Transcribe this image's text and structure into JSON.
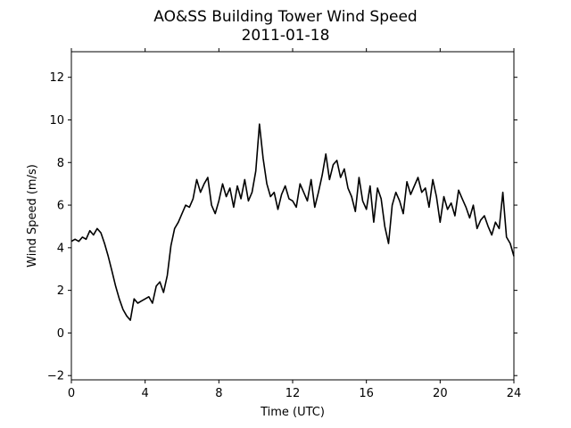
{
  "chart_data": {
    "type": "line",
    "title": "AO&SS Building Tower Wind Speed",
    "subtitle": "2011-01-18",
    "xlabel": "Time (UTC)",
    "ylabel": "Wind Speed (m/s)",
    "xlim": [
      0,
      24
    ],
    "ylim": [
      -2.2,
      13.2
    ],
    "xticks": [
      0,
      4,
      8,
      12,
      16,
      20,
      24
    ],
    "yticks": [
      -2,
      0,
      2,
      4,
      6,
      8,
      10,
      12
    ],
    "grid": false,
    "legend": "none",
    "line_color": "#000000",
    "series": [
      {
        "x": [
          0,
          0.2,
          0.4,
          0.6,
          0.8,
          1.0,
          1.2,
          1.4,
          1.6,
          1.8,
          2.0,
          2.2,
          2.4,
          2.6,
          2.8,
          3.0,
          3.2,
          3.4,
          3.6,
          3.8,
          4.0,
          4.2,
          4.4,
          4.6,
          4.8,
          5.0,
          5.2,
          5.4,
          5.6,
          5.8,
          6.0,
          6.2,
          6.4,
          6.6,
          6.8,
          7.0,
          7.2,
          7.4,
          7.6,
          7.8,
          8.0,
          8.2,
          8.4,
          8.6,
          8.8,
          9.0,
          9.2,
          9.4,
          9.6,
          9.8,
          10.0,
          10.2,
          10.4,
          10.6,
          10.8,
          11.0,
          11.2,
          11.4,
          11.6,
          11.8,
          12.0,
          12.2,
          12.4,
          12.6,
          12.8,
          13.0,
          13.2,
          13.4,
          13.6,
          13.8,
          14.0,
          14.2,
          14.4,
          14.6,
          14.8,
          15.0,
          15.2,
          15.4,
          15.6,
          15.8,
          16.0,
          16.2,
          16.4,
          16.6,
          16.8,
          17.0,
          17.2,
          17.4,
          17.6,
          17.8,
          18.0,
          18.2,
          18.4,
          18.6,
          18.8,
          19.0,
          19.2,
          19.4,
          19.6,
          19.8,
          20.0,
          20.2,
          20.4,
          20.6,
          20.8,
          21.0,
          21.2,
          21.4,
          21.6,
          21.8,
          22.0,
          22.2,
          22.4,
          22.6,
          22.8,
          23.0,
          23.2,
          23.4,
          23.6,
          23.8,
          24.0
        ],
        "values": [
          4.3,
          4.4,
          4.3,
          4.5,
          4.4,
          4.8,
          4.6,
          4.9,
          4.7,
          4.2,
          3.6,
          2.9,
          2.2,
          1.6,
          1.1,
          0.8,
          0.6,
          1.6,
          1.4,
          1.5,
          1.6,
          1.7,
          1.4,
          2.2,
          2.4,
          1.9,
          2.7,
          4.1,
          4.9,
          5.2,
          5.6,
          6.0,
          5.9,
          6.3,
          7.2,
          6.6,
          7.0,
          7.3,
          6.0,
          5.6,
          6.2,
          7.0,
          6.4,
          6.8,
          5.9,
          6.9,
          6.3,
          7.2,
          6.2,
          6.6,
          7.6,
          9.8,
          8.2,
          7.0,
          6.4,
          6.6,
          5.8,
          6.5,
          6.9,
          6.3,
          6.2,
          5.9,
          7.0,
          6.6,
          6.2,
          7.2,
          5.9,
          6.6,
          7.4,
          8.4,
          7.2,
          7.9,
          8.1,
          7.3,
          7.7,
          6.8,
          6.4,
          5.7,
          7.3,
          6.2,
          5.8,
          6.9,
          5.2,
          6.8,
          6.3,
          5.0,
          4.2,
          6.0,
          6.6,
          6.2,
          5.6,
          7.1,
          6.5,
          6.9,
          7.3,
          6.6,
          6.8,
          5.9,
          7.2,
          6.4,
          5.2,
          6.4,
          5.8,
          6.1,
          5.5,
          6.7,
          6.3,
          5.9,
          5.4,
          6.0,
          4.9,
          5.3,
          5.5,
          5.0,
          4.6,
          5.2,
          4.9,
          6.6,
          4.5,
          4.2,
          3.6
        ]
      }
    ]
  }
}
